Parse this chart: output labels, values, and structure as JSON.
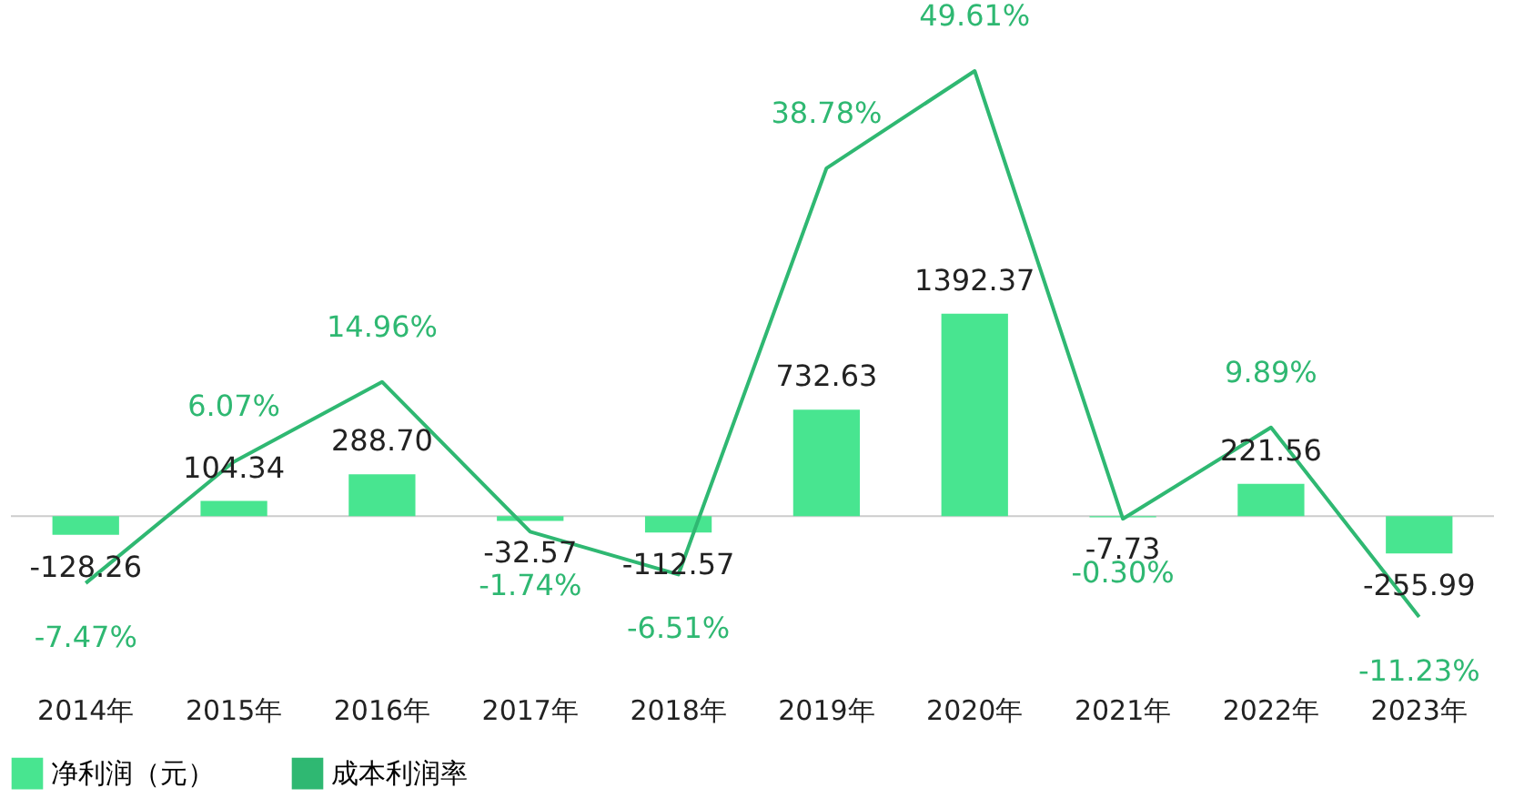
{
  "chart_data": {
    "type": "bar",
    "categories": [
      "2014年",
      "2015年",
      "2016年",
      "2017年",
      "2018年",
      "2019年",
      "2020年",
      "2021年",
      "2022年",
      "2023年"
    ],
    "series": [
      {
        "name": "净利润（元）",
        "axis": "y",
        "color": "#48e590",
        "values": [
          -128.26,
          104.34,
          288.7,
          -32.57,
          -112.57,
          732.63,
          1392.37,
          -7.73,
          221.56,
          -255.99
        ],
        "value_labels": [
          "-128.26",
          "104.34",
          "288.70",
          "-32.57",
          "-112.57",
          "732.63",
          "1392.37",
          "-7.73",
          "221.56",
          "-255.99"
        ]
      },
      {
        "name": "成本利润率",
        "type": "line",
        "axis": "y2",
        "color": "#2fb872",
        "values": [
          -7.47,
          6.07,
          14.96,
          -1.74,
          -6.51,
          38.78,
          49.61,
          -0.3,
          9.89,
          -11.23
        ],
        "value_labels": [
          "-7.47%",
          "6.07%",
          "14.96%",
          "-1.74%",
          "-6.51%",
          "38.78%",
          "49.61%",
          "-0.30%",
          "9.89%",
          "-11.23%"
        ]
      }
    ],
    "tick_labels": "x",
    "grid": false,
    "legend": "bottom",
    "marker": "none",
    "line_style": "solid",
    "ref_lines": [
      {
        "axis": "y",
        "value": 0,
        "color": "#cccccc"
      }
    ]
  }
}
